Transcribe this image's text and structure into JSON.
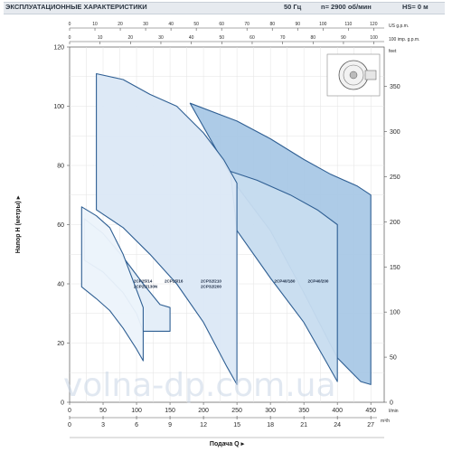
{
  "header": {
    "title": "ЭКСПЛУАТАЦИОННЫЕ ХАРАКТЕРИСТИКИ",
    "frequency": "50 Гц",
    "speed": "n= 2900 об/мин",
    "hs": "HS= 0 м"
  },
  "watermark": "volna-dp.com.ua",
  "chart_data": {
    "type": "area",
    "ylabel": "Напор H (метры)",
    "xlabel": "Подача Q",
    "ylim": [
      0,
      120
    ],
    "y_ticks": [
      0,
      20,
      40,
      60,
      80,
      100,
      120
    ],
    "x_lpm": {
      "unit": "l/min",
      "range": [
        0,
        470
      ],
      "ticks": [
        0,
        50,
        100,
        150,
        200,
        250,
        300,
        350,
        400,
        450
      ]
    },
    "x_m3h": {
      "unit": "m³/h",
      "ticks": [
        0,
        3,
        6,
        9,
        12,
        15,
        18,
        21,
        24,
        27
      ]
    },
    "x_usgpm": {
      "unit": "US g.p.m.",
      "ticks": [
        0,
        10,
        20,
        30,
        40,
        50,
        60,
        70,
        80,
        90,
        100,
        110,
        120
      ]
    },
    "x_impgpm": {
      "unit": "100 imp. g.p.m.",
      "ticks": [
        0,
        10,
        20,
        30,
        40,
        50,
        60,
        70,
        80,
        90,
        100
      ]
    },
    "y_feet": {
      "unit": "feet",
      "ticks": [
        0,
        50,
        100,
        150,
        200,
        250,
        300,
        350
      ]
    },
    "series": [
      {
        "name": "2CP40/200",
        "color": "#a9c8e6",
        "top": [
          [
            180,
            101
          ],
          [
            250,
            95
          ],
          [
            300,
            89
          ],
          [
            350,
            82
          ],
          [
            390,
            77
          ],
          [
            430,
            73
          ],
          [
            450,
            70
          ]
        ],
        "bottom": [
          [
            250,
            73
          ],
          [
            300,
            58
          ],
          [
            350,
            37
          ],
          [
            400,
            15
          ],
          [
            435,
            7
          ],
          [
            450,
            6
          ]
        ]
      },
      {
        "name": "2CP40/180",
        "color": "#c7dcef",
        "top": [
          [
            240,
            78
          ],
          [
            280,
            75
          ],
          [
            330,
            70
          ],
          [
            370,
            65
          ],
          [
            400,
            60
          ]
        ],
        "bottom": [
          [
            250,
            58
          ],
          [
            300,
            42
          ],
          [
            350,
            27
          ],
          [
            385,
            13
          ],
          [
            400,
            7
          ]
        ]
      },
      {
        "name": "2CP32/210\n2CP32/200",
        "color": "#dbe8f5",
        "top": [
          [
            40,
            111
          ],
          [
            80,
            109
          ],
          [
            120,
            104
          ],
          [
            160,
            100
          ],
          [
            200,
            91
          ],
          [
            230,
            82
          ],
          [
            250,
            74
          ]
        ],
        "bottom": [
          [
            40,
            65
          ],
          [
            80,
            59
          ],
          [
            120,
            50
          ],
          [
            160,
            40
          ],
          [
            200,
            27
          ],
          [
            235,
            12
          ],
          [
            250,
            6
          ]
        ]
      },
      {
        "name": "2CP25/16",
        "color": "#e3edf8",
        "top": [
          [
            22,
            62
          ],
          [
            50,
            57
          ],
          [
            80,
            49
          ],
          [
            110,
            40
          ],
          [
            135,
            33
          ],
          [
            150,
            32
          ]
        ],
        "bottom": [
          [
            22,
            48
          ],
          [
            50,
            44
          ],
          [
            80,
            37
          ],
          [
            100,
            30
          ],
          [
            110,
            24
          ],
          [
            150,
            24
          ]
        ]
      },
      {
        "name": "2CP25/14\n2CP25/130N",
        "color": "#ecf3fb",
        "top": [
          [
            18,
            66
          ],
          [
            40,
            63
          ],
          [
            60,
            59
          ],
          [
            80,
            50
          ],
          [
            100,
            38
          ],
          [
            110,
            32
          ]
        ],
        "bottom": [
          [
            18,
            39
          ],
          [
            40,
            35
          ],
          [
            60,
            31
          ],
          [
            80,
            25
          ],
          [
            100,
            18
          ],
          [
            110,
            14
          ]
        ]
      }
    ]
  }
}
